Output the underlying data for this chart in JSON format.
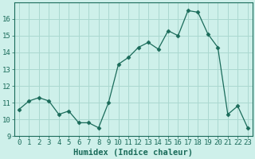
{
  "x": [
    0,
    1,
    2,
    3,
    4,
    5,
    6,
    7,
    8,
    9,
    10,
    11,
    12,
    13,
    14,
    15,
    16,
    17,
    18,
    19,
    20,
    21,
    22,
    23
  ],
  "y": [
    10.6,
    11.1,
    11.3,
    11.1,
    10.3,
    10.5,
    9.8,
    9.8,
    9.5,
    11.0,
    13.3,
    13.7,
    14.3,
    14.6,
    14.2,
    15.3,
    15.0,
    16.5,
    16.4,
    15.1,
    14.3,
    10.3,
    10.8,
    9.5
  ],
  "line_color": "#1a6b5a",
  "marker": "D",
  "marker_size": 2.5,
  "bg_color": "#cef0ea",
  "grid_color": "#aad8d0",
  "axis_color": "#1a6b5a",
  "xlabel": "Humidex (Indice chaleur)",
  "xlabel_fontsize": 7.5,
  "tick_fontsize": 6.5,
  "ylim": [
    9,
    17
  ],
  "yticks": [
    9,
    10,
    11,
    12,
    13,
    14,
    15,
    16
  ],
  "xticks": [
    0,
    1,
    2,
    3,
    4,
    5,
    6,
    7,
    8,
    9,
    10,
    11,
    12,
    13,
    14,
    15,
    16,
    17,
    18,
    19,
    20,
    21,
    22,
    23
  ],
  "xlim": [
    -0.5,
    23.5
  ]
}
